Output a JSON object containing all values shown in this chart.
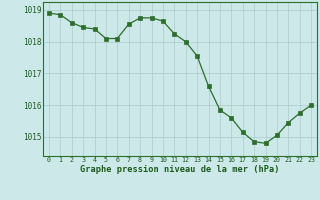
{
  "x": [
    0,
    1,
    2,
    3,
    4,
    5,
    6,
    7,
    8,
    9,
    10,
    11,
    12,
    13,
    14,
    15,
    16,
    17,
    18,
    19,
    20,
    21,
    22,
    23
  ],
  "y": [
    1018.9,
    1018.85,
    1018.6,
    1018.45,
    1018.4,
    1018.1,
    1018.1,
    1018.55,
    1018.75,
    1018.75,
    1018.65,
    1018.25,
    1018.0,
    1017.55,
    1016.6,
    1015.85,
    1015.6,
    1015.15,
    1014.85,
    1014.8,
    1015.05,
    1015.45,
    1015.75,
    1016.0
  ],
  "line_color": "#2d6e2d",
  "marker_color": "#2d6e2d",
  "bg_color": "#cce8e8",
  "grid_color": "#aacccc",
  "border_color": "#2d6e2d",
  "xlabel": "Graphe pression niveau de la mer (hPa)",
  "xlabel_color": "#1a5c1a",
  "tick_color": "#1a5c1a",
  "ylim": [
    1014.4,
    1019.25
  ],
  "yticks": [
    1015,
    1016,
    1017,
    1018,
    1019
  ],
  "xlim": [
    -0.5,
    23.5
  ],
  "xticks": [
    0,
    1,
    2,
    3,
    4,
    5,
    6,
    7,
    8,
    9,
    10,
    11,
    12,
    13,
    14,
    15,
    16,
    17,
    18,
    19,
    20,
    21,
    22,
    23
  ]
}
